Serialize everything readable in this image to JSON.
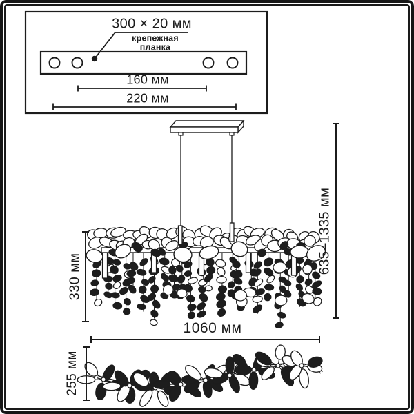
{
  "colors": {
    "line": "#1c1c1c",
    "dark_fill": "#1d1d1d",
    "background": "#ffffff",
    "frame": "#161616"
  },
  "mounting_panel": {
    "size_label": "300 × 20 мм",
    "name_line1": "крепежная",
    "name_line2": "планка",
    "holes_distance_label": "160 мм",
    "overall_length_label": "220 мм"
  },
  "side_view": {
    "body_height_label": "330 мм",
    "suspension_height_label": "635–1335 мм",
    "width_label": "1060 мм"
  },
  "top_view": {
    "depth_label": "255 мм"
  }
}
